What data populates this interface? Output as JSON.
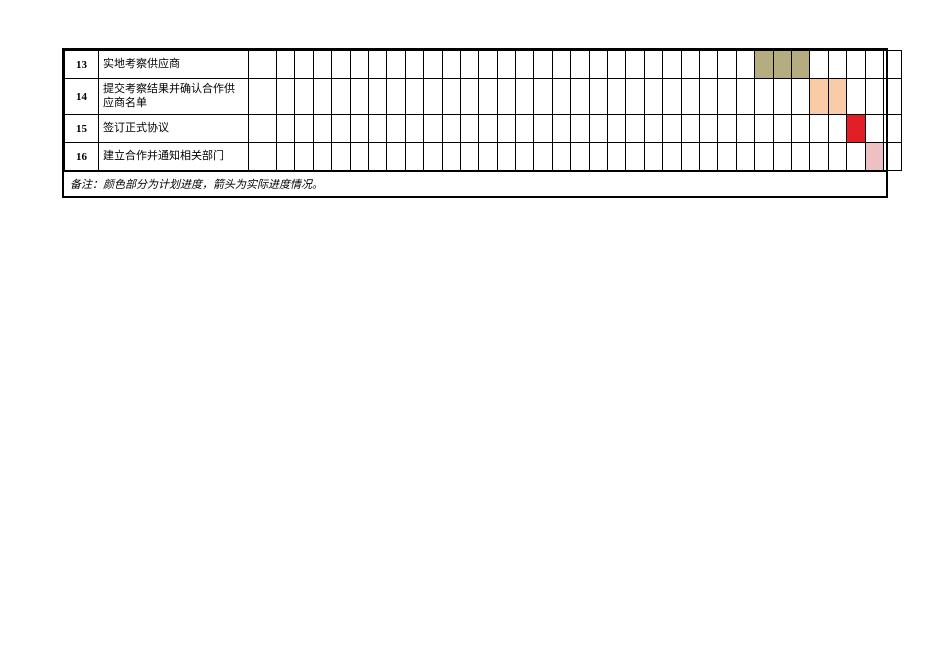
{
  "gantt": {
    "type": "gantt-table",
    "num_chart_cols": 34,
    "colors": {
      "olive": "#b5ac7f",
      "peach": "#f9cba6",
      "red": "#e21f26",
      "pink": "#eec0c4",
      "border": "#000000",
      "background": "#ffffff"
    },
    "column_widths": {
      "num_col": 34,
      "desc_col": 150,
      "pad_col": 28,
      "chart_cell": 18.4
    },
    "row_heights": {
      "normal": 28,
      "tall": 36
    },
    "rows": [
      {
        "num": "13",
        "desc": "实地考察供应商",
        "tall": false,
        "fills": [
          {
            "start": 27,
            "end": 29,
            "color": "#b5ac7f"
          }
        ]
      },
      {
        "num": "14",
        "desc": "提交考察结果并确认合作供应商名单",
        "tall": true,
        "fills": [
          {
            "start": 30,
            "end": 31,
            "color": "#f9cba6"
          }
        ]
      },
      {
        "num": "15",
        "desc": "签订正式协议",
        "tall": false,
        "fills": [
          {
            "start": 32,
            "end": 32,
            "color": "#e21f26"
          }
        ]
      },
      {
        "num": "16",
        "desc": "建立合作并通知相关部门",
        "tall": false,
        "fills": [
          {
            "start": 33,
            "end": 33,
            "color": "#eec0c4"
          }
        ]
      }
    ],
    "footnote": "备注：颜色部分为计划进度，箭头为实际进度情况。"
  }
}
